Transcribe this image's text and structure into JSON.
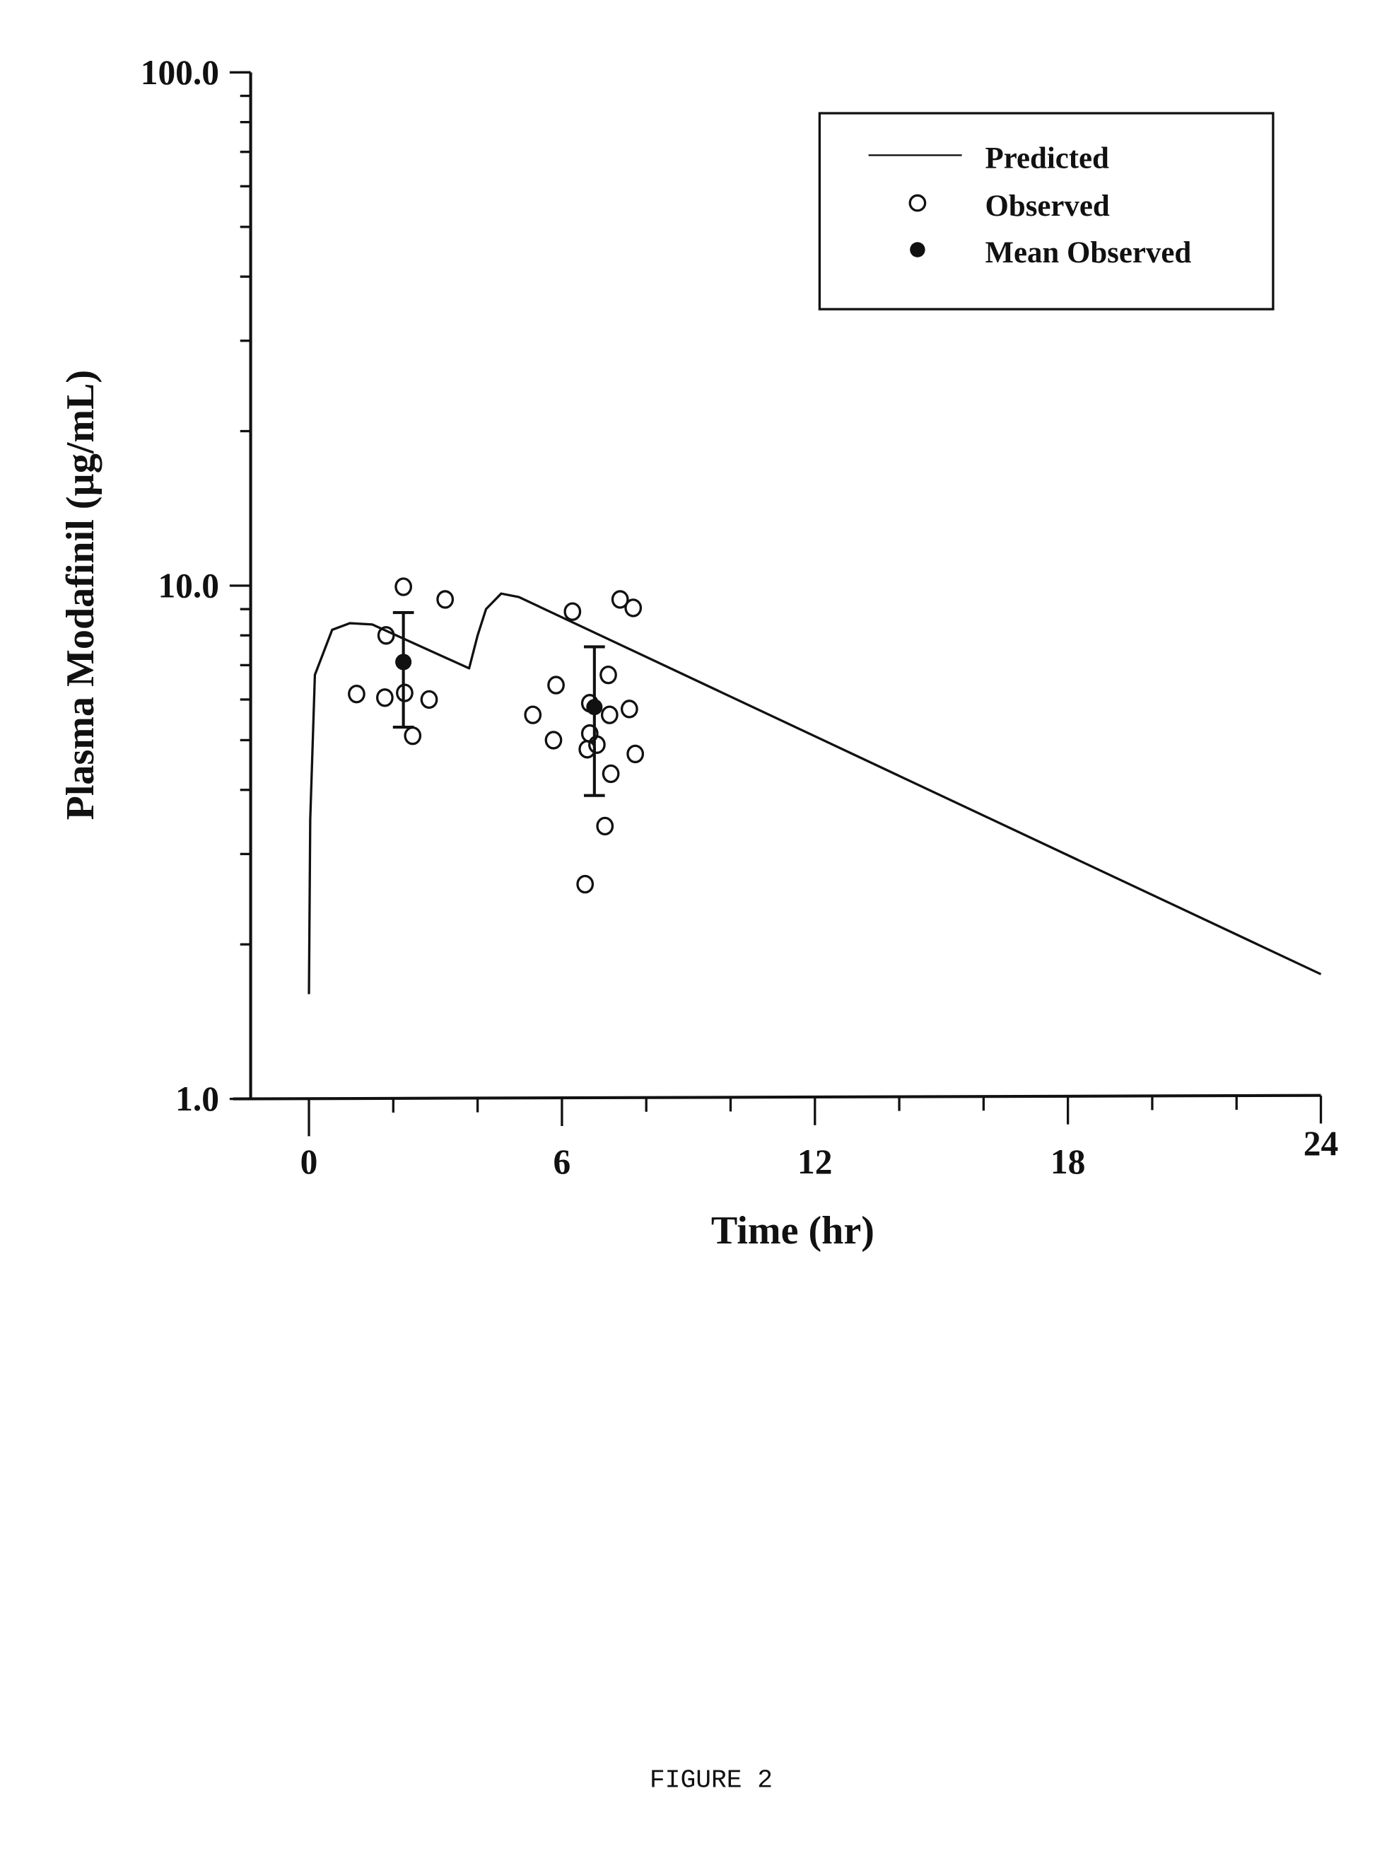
{
  "chart_data": {
    "type": "scatter",
    "title": "",
    "xlabel": "Time (hr)",
    "ylabel": "Plasma Modafinil (µg/mL)",
    "xlim": [
      0,
      24
    ],
    "ylim": [
      1,
      100
    ],
    "yscale": "log",
    "x_ticks": [
      0,
      6,
      12,
      18,
      24
    ],
    "x_tick_labels": [
      "0",
      "6",
      "12",
      "18",
      "24"
    ],
    "y_ticks": [
      1,
      10,
      100
    ],
    "y_tick_labels": [
      "1.0",
      "10.0",
      "100.0"
    ],
    "grid": false,
    "legend_position": "top-right",
    "legend": [
      "Predicted",
      "Observed",
      "Mean Observed"
    ],
    "series": [
      {
        "name": "Predicted",
        "kind": "line",
        "x": [
          0,
          0.03,
          0.14,
          0.55,
          0.97,
          1.5,
          3.8,
          4.0,
          4.2,
          4.56,
          4.98,
          24
        ],
        "y": [
          1.6,
          3.5,
          6.7,
          8.2,
          8.45,
          8.4,
          6.9,
          8.0,
          9.0,
          9.65,
          9.5,
          1.75
        ]
      },
      {
        "name": "Observed",
        "kind": "scatter",
        "x": [
          1.13,
          1.8,
          1.83,
          2.24,
          2.27,
          2.46,
          2.85,
          3.23,
          5.31,
          5.8,
          5.86,
          6.25,
          6.55,
          6.66,
          6.66,
          6.6,
          6.83,
          7.02,
          7.1,
          7.16,
          7.13,
          7.38,
          7.6,
          7.69,
          7.74
        ],
        "y": [
          6.15,
          6.05,
          8.0,
          9.95,
          6.18,
          5.1,
          6.0,
          9.4,
          5.6,
          5.0,
          6.4,
          8.9,
          2.62,
          5.9,
          5.15,
          4.8,
          4.9,
          3.4,
          6.7,
          4.3,
          5.6,
          9.4,
          5.75,
          9.05,
          4.7
        ]
      },
      {
        "name": "Mean Observed",
        "kind": "errorbar",
        "x": [
          2.24,
          6.77
        ],
        "y": [
          7.1,
          5.8
        ],
        "y_low": [
          5.3,
          3.9
        ],
        "y_high": [
          8.86,
          7.6
        ]
      }
    ]
  },
  "caption": "FIGURE 2"
}
